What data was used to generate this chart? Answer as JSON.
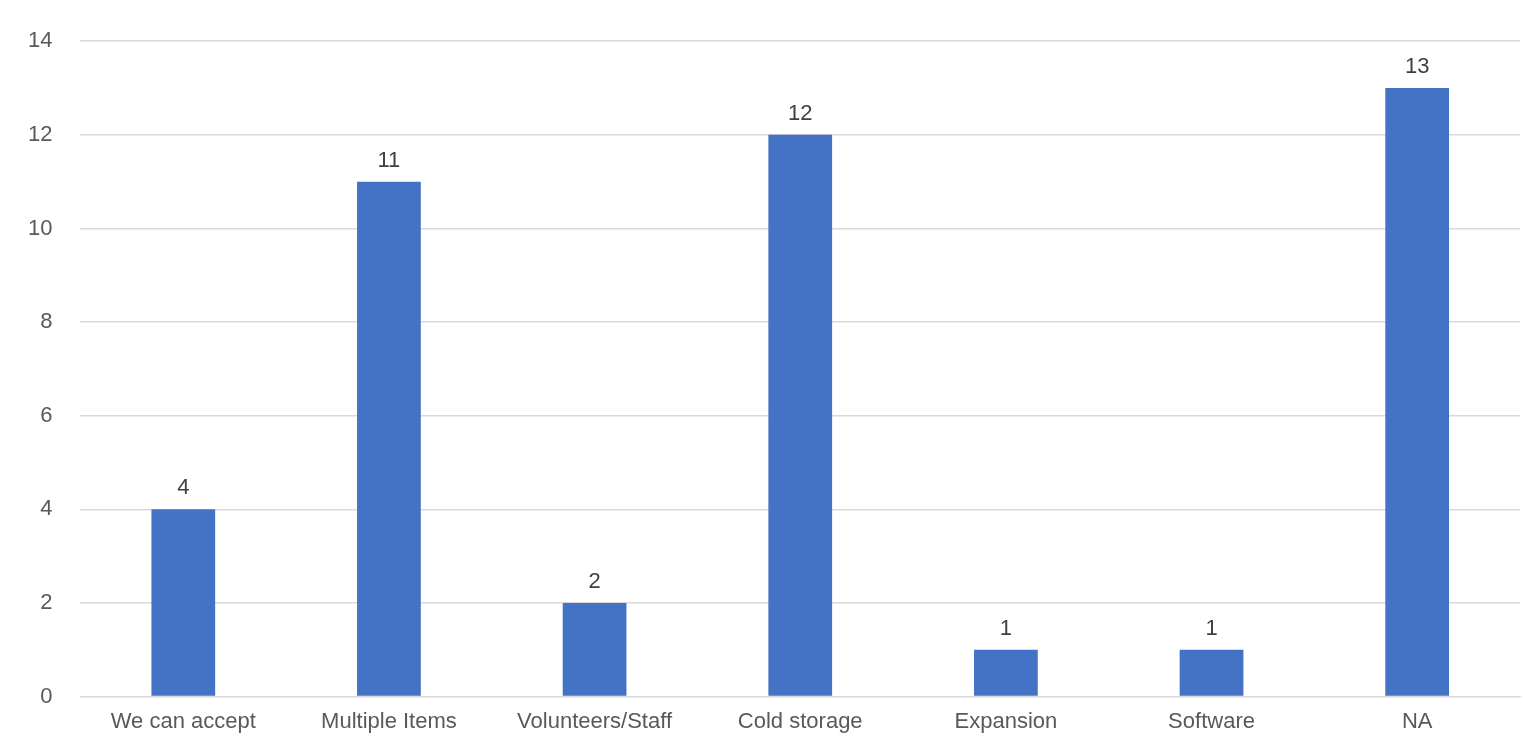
{
  "chart_data": {
    "type": "bar",
    "categories": [
      "We can accept",
      "Multiple Items",
      "Volunteers/Staff",
      "Cold storage",
      "Expansion",
      "Software",
      "NA"
    ],
    "values": [
      4,
      11,
      2,
      12,
      1,
      1,
      13
    ],
    "color": "#4472c4",
    "ylim": [
      0,
      14
    ],
    "yticks": [
      0,
      2,
      4,
      6,
      8,
      10,
      12,
      14
    ],
    "grid": "y",
    "data_labels": true,
    "legend": false
  }
}
